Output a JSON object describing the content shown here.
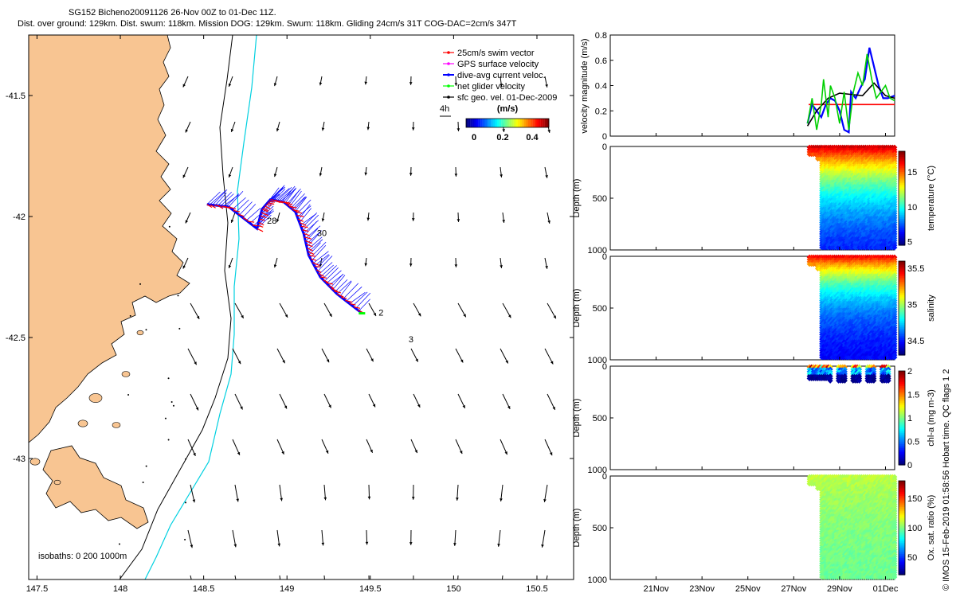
{
  "header": {
    "title": "SG152 Bicheno20091126 26-Nov 00Z to 01-Dec 11Z.",
    "summary": "Dist. over ground: 129km. Dist. swum: 118km. Mission DOG: 129km. Swum: 118km. Gliding 24cm/s 31T COG-DAC=2cm/s 347T"
  },
  "colors": {
    "land": "#f8c592",
    "isobath_200": "#000000",
    "isobath_1000": "#00d0e0",
    "swim": "#ff0000",
    "gps": "#ff00ff",
    "dac": "#0000ff",
    "net": "#00ff00",
    "geo": "#000000"
  },
  "chart_data": [
    {
      "type": "map",
      "xlim": [
        147.45,
        150.72
      ],
      "ylim": [
        -43.5,
        -41.25
      ],
      "xticks": [
        "147.5",
        "148",
        "148.5",
        "149",
        "149.5",
        "150",
        "150.5"
      ],
      "yticks": [
        "-41.5",
        "-42",
        "-42.5",
        "-43"
      ],
      "legend": {
        "items": [
          "25cm/s swim vector",
          "GPS surface velocity",
          "dive-avg current veloc.",
          "net glider velocity",
          "sfc geo. vel. 01-Dec-2009"
        ],
        "colorbar_title": "(m/s)",
        "colorbar_ticks": [
          "0",
          "0.2",
          "0.4"
        ],
        "scale_label": "4h"
      },
      "isobaths_label": "isobaths: 0 200 1000m",
      "track": [
        [
          148.52,
          -41.95
        ],
        [
          148.65,
          -41.96
        ],
        [
          148.82,
          -42.05
        ],
        [
          148.85,
          -41.97
        ],
        [
          148.9,
          -41.93
        ],
        [
          148.98,
          -41.94
        ],
        [
          149.05,
          -41.98
        ],
        [
          149.1,
          -42.07
        ],
        [
          149.13,
          -42.16
        ],
        [
          149.2,
          -42.25
        ],
        [
          149.3,
          -42.32
        ],
        [
          149.45,
          -42.4
        ]
      ],
      "day_labels": [
        {
          "text": "28",
          "lon": 148.88,
          "lat": -42.03
        },
        {
          "text": "30",
          "lon": 149.18,
          "lat": -42.08
        },
        {
          "text": "2",
          "lon": 149.55,
          "lat": -42.41
        },
        {
          "text": "3",
          "lon": 149.73,
          "lat": -42.52
        }
      ]
    },
    {
      "type": "line",
      "ylabel": "velocity magnitude (m/s)",
      "ylim": [
        0,
        0.8
      ],
      "yticks": [
        "0",
        "0.2",
        "0.4",
        "0.6",
        "0.8"
      ],
      "xlim": [
        0,
        12.4
      ],
      "series": [
        {
          "name": "swim",
          "color": "#ff0000",
          "x": [
            8.65,
            12.4
          ],
          "y": [
            0.25,
            0.25
          ]
        },
        {
          "name": "dac",
          "color": "#0000ff",
          "x": [
            8.6,
            8.8,
            9.0,
            9.2,
            9.4,
            9.6,
            9.8,
            10.0,
            10.2,
            10.4,
            10.5,
            10.7,
            10.9,
            11.1,
            11.3,
            11.5,
            11.7,
            11.9,
            12.1,
            12.4
          ],
          "y": [
            0.1,
            0.25,
            0.2,
            0.15,
            0.25,
            0.3,
            0.28,
            0.2,
            0.05,
            0.03,
            0.35,
            0.3,
            0.38,
            0.45,
            0.7,
            0.55,
            0.4,
            0.3,
            0.3,
            0.32
          ]
        },
        {
          "name": "geo",
          "color": "#000000",
          "x": [
            8.6,
            9.0,
            9.5,
            10.0,
            10.5,
            11.0,
            11.5,
            12.0,
            12.4
          ],
          "y": [
            0.08,
            0.2,
            0.3,
            0.34,
            0.33,
            0.32,
            0.42,
            0.32,
            0.3
          ]
        },
        {
          "name": "net",
          "color": "#00d000",
          "x": [
            8.6,
            8.8,
            9.0,
            9.2,
            9.3,
            9.5,
            9.6,
            9.8,
            10.0,
            10.2,
            10.4,
            10.6,
            10.8,
            11.0,
            11.2,
            11.4,
            11.6,
            11.8,
            12.0,
            12.2,
            12.4
          ],
          "y": [
            0.1,
            0.3,
            0.05,
            0.25,
            0.45,
            0.15,
            0.4,
            0.3,
            0.1,
            0.35,
            0.05,
            0.35,
            0.5,
            0.4,
            0.65,
            0.45,
            0.3,
            0.35,
            0.4,
            0.3,
            0.28
          ]
        }
      ]
    },
    {
      "type": "heatmap",
      "ylabel": "Depth (m)",
      "colorbar_label": "temperature (°C)",
      "ylim": [
        0,
        1000
      ],
      "yticks": [
        "0",
        "500",
        "1000"
      ],
      "clim": [
        4.5,
        18
      ],
      "cticks": [
        "5",
        "10",
        "15"
      ],
      "field": {
        "surface": 17,
        "deep": 5,
        "transition": 0.5
      }
    },
    {
      "type": "heatmap",
      "ylabel": "Depth (m)",
      "colorbar_label": "salinity",
      "ylim": [
        0,
        1000
      ],
      "yticks": [
        "0",
        "500",
        "1000"
      ],
      "clim": [
        34.3,
        35.6
      ],
      "cticks": [
        "34.5",
        "35",
        "35.5"
      ],
      "field": {
        "surface": 35.45,
        "deep": 34.4,
        "transition": 0.35
      }
    },
    {
      "type": "heatmap",
      "ylabel": "Depth (m)",
      "colorbar_label": "chl-a (mg m-3)",
      "ylim": [
        0,
        1000
      ],
      "yticks": [
        "0",
        "500",
        "1000"
      ],
      "clim": [
        0,
        2
      ],
      "cticks": [
        "0",
        "0.5",
        "1",
        "1.5",
        "2"
      ],
      "field": {
        "surface": 1.2,
        "deep": 0.1,
        "transition": 0.1
      }
    },
    {
      "type": "heatmap",
      "ylabel": "Depth (m)",
      "colorbar_label": "Ox. sat. ratio (%)",
      "ylim": [
        0,
        1000
      ],
      "yticks": [
        "0",
        "500",
        "1000"
      ],
      "clim": [
        20,
        180
      ],
      "cticks": [
        "50",
        "100",
        "150"
      ],
      "field": {
        "surface": 110,
        "deep": 95,
        "transition": 0.5
      }
    }
  ],
  "time_axis": {
    "ticks": [
      "21Nov",
      "23Nov",
      "25Nov",
      "27Nov",
      "29Nov",
      "01Dec"
    ]
  },
  "credit": "© IMOS 15-Feb-2019 01:58:56 Hobart time. QC flags 1 2"
}
